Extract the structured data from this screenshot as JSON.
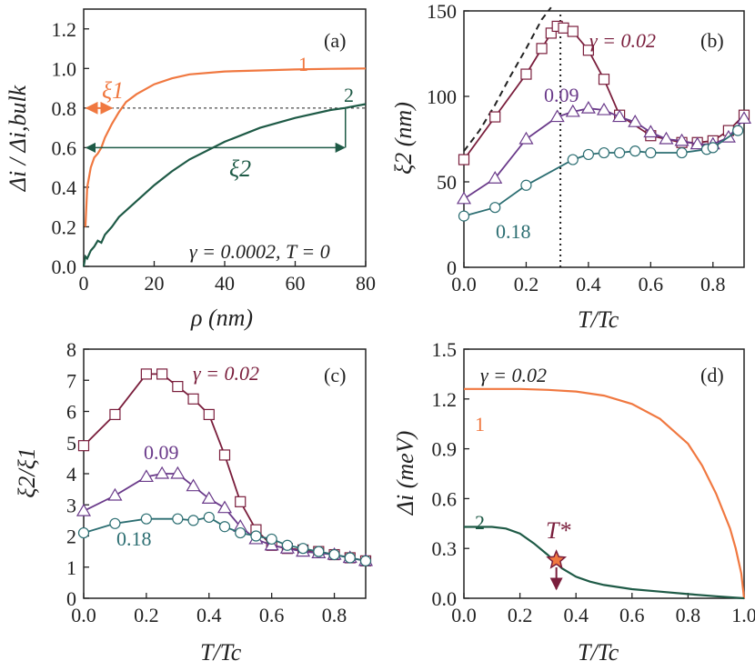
{
  "colors": {
    "orange": "#f07840",
    "dark_green": "#1e5a46",
    "maroon": "#7a1e3c",
    "purple": "#6a3a8a",
    "teal": "#2c6e72",
    "black": "#222222"
  },
  "chart_data": [
    {
      "type": "line",
      "panel": "a",
      "panel_label": "(a)",
      "xlabel": "ρ (nm)",
      "ylabel": "Δi / Δi,bulk",
      "xlim": [
        0,
        80
      ],
      "ylim": [
        0,
        1.3
      ],
      "xticks": [
        "0",
        "20",
        "40",
        "60",
        "80"
      ],
      "yticks": [
        "0.0",
        "0.2",
        "0.4",
        "0.6",
        "0.8",
        "1.0",
        "1.2"
      ],
      "series": [
        {
          "name": "1",
          "x": [
            0.5,
            1,
            2,
            3,
            4,
            5,
            6,
            8,
            10,
            12,
            15,
            20,
            25,
            30,
            40,
            50,
            60,
            70,
            80
          ],
          "y": [
            0.2,
            0.4,
            0.5,
            0.55,
            0.57,
            0.6,
            0.65,
            0.72,
            0.78,
            0.83,
            0.87,
            0.92,
            0.95,
            0.97,
            0.985,
            0.99,
            0.995,
            0.998,
            1.0
          ]
        },
        {
          "name": "2",
          "x": [
            0,
            0.5,
            1,
            2,
            3,
            4,
            5,
            6,
            8,
            10,
            15,
            20,
            25,
            30,
            40,
            50,
            60,
            70,
            74,
            80
          ],
          "y": [
            0.0,
            0.05,
            0.04,
            0.08,
            0.1,
            0.13,
            0.12,
            0.16,
            0.2,
            0.25,
            0.33,
            0.41,
            0.48,
            0.54,
            0.63,
            0.7,
            0.75,
            0.79,
            0.8,
            0.82
          ]
        }
      ],
      "annotations": {
        "series1_label": "1",
        "series2_label": "2",
        "xi1_label": "ξ1",
        "xi2_label": "ξ2",
        "params": "γ = 0.0002, T = 0",
        "xi1_width": 8,
        "xi2_start": 0,
        "xi2_end": 74,
        "xi2_level": 0.6,
        "ref_level": 0.8
      }
    },
    {
      "type": "line",
      "panel": "b",
      "panel_label": "(b)",
      "xlabel": "T/Tc",
      "ylabel": "ξ2 (nm)",
      "xlim": [
        0,
        0.9
      ],
      "ylim": [
        0,
        150
      ],
      "xticks": [
        "0.0",
        "0.2",
        "0.4",
        "0.6",
        "0.8"
      ],
      "yticks": [
        "0",
        "50",
        "100",
        "150"
      ],
      "vline_x": 0.31,
      "dashed_curve": {
        "x": [
          0,
          0.05,
          0.1,
          0.15,
          0.2,
          0.25,
          0.28
        ],
        "y": [
          68,
          80,
          95,
          112,
          128,
          145,
          152
        ]
      },
      "series": [
        {
          "name": "γ = 0.02",
          "label": "γ = 0.02",
          "marker": "square",
          "x": [
            0,
            0.1,
            0.2,
            0.25,
            0.28,
            0.3,
            0.32,
            0.35,
            0.4,
            0.45,
            0.5,
            0.6,
            0.7,
            0.75,
            0.8,
            0.85,
            0.9
          ],
          "y": [
            63,
            88,
            113,
            128,
            137,
            141,
            140,
            138,
            127,
            110,
            89,
            77,
            73,
            73,
            74,
            80,
            89
          ]
        },
        {
          "name": "0.09",
          "label": "0.09",
          "marker": "triangle",
          "x": [
            0,
            0.1,
            0.2,
            0.3,
            0.35,
            0.4,
            0.45,
            0.5,
            0.55,
            0.6,
            0.65,
            0.7,
            0.75,
            0.8,
            0.85,
            0.9
          ],
          "y": [
            40,
            52,
            75,
            88,
            91,
            93,
            92,
            88,
            85,
            79,
            75,
            74,
            72,
            72,
            76,
            87
          ]
        },
        {
          "name": "0.18",
          "label": "0.18",
          "marker": "circle",
          "x": [
            0,
            0.1,
            0.2,
            0.35,
            0.4,
            0.45,
            0.5,
            0.55,
            0.6,
            0.7,
            0.78,
            0.8,
            0.88
          ],
          "y": [
            30,
            35,
            48,
            63,
            66,
            67,
            67,
            68,
            67,
            67,
            69,
            70,
            80
          ]
        }
      ]
    },
    {
      "type": "line",
      "panel": "c",
      "panel_label": "(c)",
      "xlabel": "T/Tc",
      "ylabel": "ξ2/ξ1",
      "xlim": [
        0,
        0.9
      ],
      "ylim": [
        0,
        8
      ],
      "xticks": [
        "0.0",
        "0.2",
        "0.4",
        "0.6",
        "0.8"
      ],
      "yticks": [
        "0",
        "1",
        "2",
        "3",
        "4",
        "5",
        "6",
        "7",
        "8"
      ],
      "series": [
        {
          "name": "γ = 0.02",
          "label": "γ = 0.02",
          "marker": "square",
          "x": [
            0,
            0.1,
            0.2,
            0.25,
            0.3,
            0.35,
            0.4,
            0.45,
            0.5,
            0.55,
            0.6,
            0.65,
            0.7,
            0.75,
            0.8,
            0.85,
            0.9
          ],
          "y": [
            4.9,
            5.9,
            7.2,
            7.2,
            6.8,
            6.4,
            5.9,
            4.6,
            3.1,
            2.2,
            1.7,
            1.6,
            1.55,
            1.5,
            1.4,
            1.3,
            1.2
          ]
        },
        {
          "name": "0.09",
          "label": "0.09",
          "marker": "triangle",
          "x": [
            0,
            0.1,
            0.2,
            0.25,
            0.3,
            0.35,
            0.4,
            0.45,
            0.5,
            0.55,
            0.6,
            0.65,
            0.7,
            0.75,
            0.8,
            0.85,
            0.9
          ],
          "y": [
            2.8,
            3.3,
            3.9,
            4.0,
            4.0,
            3.6,
            3.2,
            2.9,
            2.3,
            1.9,
            1.7,
            1.6,
            1.5,
            1.45,
            1.4,
            1.3,
            1.2
          ]
        },
        {
          "name": "0.18",
          "label": "0.18",
          "marker": "circle",
          "x": [
            0,
            0.1,
            0.2,
            0.3,
            0.35,
            0.4,
            0.45,
            0.5,
            0.55,
            0.6,
            0.65,
            0.7,
            0.75,
            0.8,
            0.85,
            0.9
          ],
          "y": [
            2.1,
            2.4,
            2.55,
            2.55,
            2.5,
            2.6,
            2.3,
            2.1,
            2.0,
            1.9,
            1.7,
            1.6,
            1.5,
            1.4,
            1.3,
            1.2
          ]
        }
      ]
    },
    {
      "type": "line",
      "panel": "d",
      "panel_label": "(d)",
      "xlabel": "T/Tc",
      "ylabel": "Δi (meV)",
      "xlim": [
        0,
        1.0
      ],
      "ylim": [
        0,
        1.5
      ],
      "xticks": [
        "0.0",
        "0.2",
        "0.4",
        "0.6",
        "0.8",
        "1.0"
      ],
      "yticks": [
        "0.0",
        "0.3",
        "0.6",
        "0.9",
        "1.2",
        "1.5"
      ],
      "params": "γ = 0.02",
      "tstar_label": "T*",
      "tstar": {
        "x": 0.33,
        "y": 0.23
      },
      "series": [
        {
          "name": "1",
          "label": "1",
          "x": [
            0,
            0.1,
            0.2,
            0.3,
            0.4,
            0.5,
            0.6,
            0.7,
            0.8,
            0.85,
            0.9,
            0.95,
            0.97,
            0.99,
            1.0
          ],
          "y": [
            1.26,
            1.26,
            1.26,
            1.255,
            1.245,
            1.22,
            1.17,
            1.08,
            0.93,
            0.8,
            0.63,
            0.42,
            0.3,
            0.15,
            0.0
          ]
        },
        {
          "name": "2",
          "label": "2",
          "x": [
            0,
            0.1,
            0.15,
            0.2,
            0.25,
            0.3,
            0.35,
            0.4,
            0.45,
            0.5,
            0.6,
            0.7,
            0.8,
            0.9,
            1.0
          ],
          "y": [
            0.43,
            0.43,
            0.42,
            0.39,
            0.33,
            0.26,
            0.18,
            0.13,
            0.1,
            0.08,
            0.055,
            0.04,
            0.025,
            0.012,
            0.0
          ]
        }
      ]
    }
  ]
}
